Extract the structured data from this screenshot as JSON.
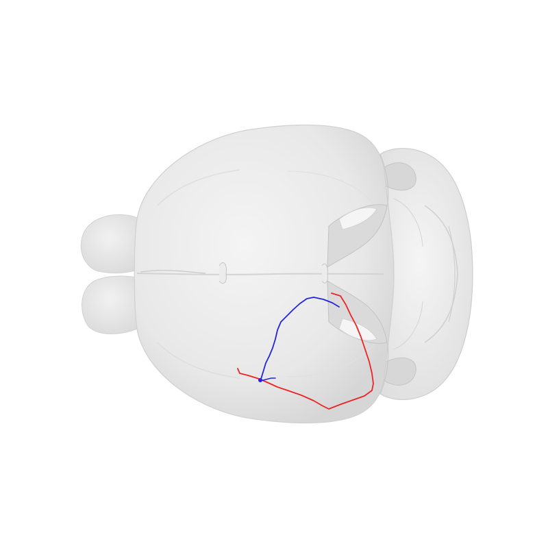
{
  "scene": {
    "background": "#ffffff",
    "view": "dorsal",
    "brain_fill": "#e6e6e6",
    "brain_stroke": "#cfcfcf",
    "shadow": "#c9c9c9"
  },
  "traces": [
    {
      "name": "trace-red",
      "color": "#ee2222"
    },
    {
      "name": "trace-blue",
      "color": "#2222dd"
    }
  ]
}
